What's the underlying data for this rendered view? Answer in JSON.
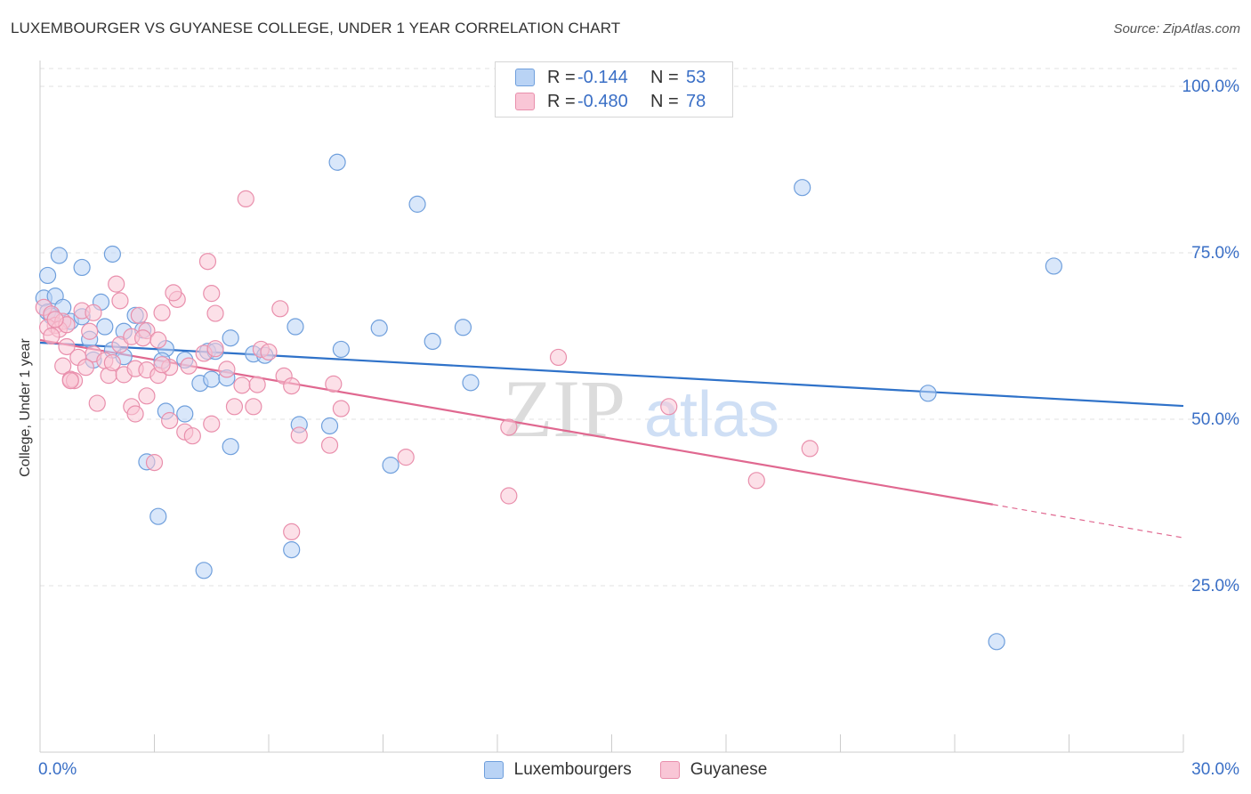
{
  "title": "LUXEMBOURGER VS GUYANESE COLLEGE, UNDER 1 YEAR CORRELATION CHART",
  "source": "Source: ZipAtlas.com",
  "watermark": {
    "zip": "ZIP",
    "atlas": "atlas"
  },
  "legend_top": [
    {
      "r_label": "R =",
      "r_value": "-0.144",
      "n_label": "N =",
      "n_value": "53"
    },
    {
      "r_label": "R =",
      "r_value": "-0.480",
      "n_label": "N =",
      "n_value": "78"
    }
  ],
  "legend_bottom": [
    "Luxembourgers",
    "Guyanese"
  ],
  "colors": {
    "blue_fill": "#b9d3f5",
    "blue_stroke": "#6f9fdc",
    "blue_line": "#2f72c9",
    "pink_fill": "#f9c6d6",
    "pink_stroke": "#e98fac",
    "pink_line": "#e06890",
    "axis_text": "#3a6fc6",
    "grid": "#e2e2e2"
  },
  "chart_data": {
    "type": "scatter",
    "title": "LUXEMBOURGER VS GUYANESE COLLEGE, UNDER 1 YEAR CORRELATION CHART",
    "xlabel": "",
    "ylabel": "College, Under 1 year",
    "xlim": [
      0,
      30
    ],
    "ylim": [
      0,
      105
    ],
    "x_tick_labels": [
      "0.0%",
      "30.0%"
    ],
    "y_ticks": [
      25,
      50,
      75,
      100
    ],
    "y_tick_labels": [
      "25.0%",
      "50.0%",
      "75.0%",
      "100.0%"
    ],
    "series": [
      {
        "name": "Luxembourgers",
        "r": -0.144,
        "n": 53,
        "trend": {
          "x0": 0,
          "y0": 61.5,
          "x1": 30,
          "y1": 52.0
        },
        "points": [
          [
            0.2,
            71.6
          ],
          [
            0.5,
            74.6
          ],
          [
            1.1,
            72.8
          ],
          [
            1.9,
            74.8
          ],
          [
            0.1,
            68.2
          ],
          [
            0.4,
            68.5
          ],
          [
            0.6,
            66.8
          ],
          [
            1.6,
            67.6
          ],
          [
            0.2,
            66.1
          ],
          [
            0.8,
            64.7
          ],
          [
            1.1,
            65.4
          ],
          [
            1.7,
            63.9
          ],
          [
            2.2,
            63.2
          ],
          [
            2.5,
            65.6
          ],
          [
            2.7,
            63.4
          ],
          [
            3.3,
            60.6
          ],
          [
            1.3,
            62.0
          ],
          [
            1.9,
            60.4
          ],
          [
            2.2,
            59.4
          ],
          [
            3.2,
            58.8
          ],
          [
            3.8,
            58.9
          ],
          [
            4.4,
            60.2
          ],
          [
            4.6,
            60.2
          ],
          [
            5.0,
            62.2
          ],
          [
            5.6,
            59.8
          ],
          [
            5.9,
            59.6
          ],
          [
            6.7,
            63.9
          ],
          [
            7.9,
            60.5
          ],
          [
            8.9,
            63.7
          ],
          [
            9.2,
            43.1
          ],
          [
            10.3,
            61.7
          ],
          [
            11.1,
            63.8
          ],
          [
            11.3,
            55.5
          ],
          [
            7.8,
            88.6
          ],
          [
            9.9,
            82.3
          ],
          [
            20.0,
            84.8
          ],
          [
            26.6,
            73.0
          ],
          [
            23.3,
            53.9
          ],
          [
            25.1,
            16.6
          ],
          [
            4.2,
            55.4
          ],
          [
            4.5,
            56.0
          ],
          [
            4.9,
            56.2
          ],
          [
            3.3,
            51.2
          ],
          [
            3.8,
            50.8
          ],
          [
            6.8,
            49.2
          ],
          [
            7.6,
            49.0
          ],
          [
            2.8,
            43.6
          ],
          [
            3.1,
            35.4
          ],
          [
            5.0,
            45.9
          ],
          [
            4.3,
            27.3
          ],
          [
            6.6,
            30.4
          ],
          [
            1.4,
            58.9
          ],
          [
            0.3,
            65.5
          ]
        ]
      },
      {
        "name": "Guyanese",
        "r": -0.48,
        "n": 78,
        "trend": {
          "x0": 0,
          "y0": 61.9,
          "x1": 25,
          "y1": 37.2,
          "dash_x1": 30,
          "dash_y1": 32.2
        },
        "points": [
          [
            0.1,
            66.8
          ],
          [
            0.3,
            65.8
          ],
          [
            0.4,
            64.1
          ],
          [
            0.6,
            64.7
          ],
          [
            0.2,
            63.8
          ],
          [
            0.5,
            63.5
          ],
          [
            0.7,
            64.2
          ],
          [
            1.1,
            66.3
          ],
          [
            1.4,
            66.0
          ],
          [
            2.1,
            67.8
          ],
          [
            2.6,
            65.6
          ],
          [
            2.8,
            63.3
          ],
          [
            3.2,
            66.0
          ],
          [
            3.6,
            68.0
          ],
          [
            4.5,
            68.9
          ],
          [
            4.4,
            73.7
          ],
          [
            5.4,
            83.1
          ],
          [
            6.3,
            66.6
          ],
          [
            2.0,
            70.3
          ],
          [
            3.5,
            69.0
          ],
          [
            4.6,
            65.9
          ],
          [
            1.3,
            63.2
          ],
          [
            2.1,
            61.2
          ],
          [
            2.4,
            62.4
          ],
          [
            3.1,
            61.9
          ],
          [
            1.4,
            59.8
          ],
          [
            1.7,
            58.8
          ],
          [
            0.7,
            60.9
          ],
          [
            1.0,
            59.3
          ],
          [
            0.6,
            58.0
          ],
          [
            0.8,
            56.0
          ],
          [
            0.9,
            55.8
          ],
          [
            1.2,
            57.8
          ],
          [
            1.8,
            56.6
          ],
          [
            2.2,
            56.7
          ],
          [
            2.5,
            57.6
          ],
          [
            2.8,
            57.4
          ],
          [
            3.1,
            56.6
          ],
          [
            3.4,
            57.8
          ],
          [
            3.9,
            58.0
          ],
          [
            4.3,
            59.9
          ],
          [
            4.6,
            60.6
          ],
          [
            4.9,
            57.5
          ],
          [
            5.3,
            55.1
          ],
          [
            5.7,
            55.2
          ],
          [
            5.8,
            60.5
          ],
          [
            6.0,
            60.1
          ],
          [
            6.4,
            56.5
          ],
          [
            6.6,
            55.0
          ],
          [
            7.7,
            55.3
          ],
          [
            2.4,
            51.9
          ],
          [
            2.5,
            50.8
          ],
          [
            2.8,
            53.5
          ],
          [
            3.4,
            49.8
          ],
          [
            3.8,
            48.1
          ],
          [
            4.0,
            47.5
          ],
          [
            4.5,
            49.3
          ],
          [
            5.1,
            51.9
          ],
          [
            5.6,
            51.9
          ],
          [
            6.8,
            47.6
          ],
          [
            7.6,
            46.1
          ],
          [
            7.9,
            51.6
          ],
          [
            9.6,
            44.3
          ],
          [
            12.3,
            38.5
          ],
          [
            12.3,
            48.8
          ],
          [
            13.6,
            59.3
          ],
          [
            16.5,
            51.9
          ],
          [
            18.8,
            40.8
          ],
          [
            20.2,
            45.6
          ],
          [
            6.6,
            33.1
          ],
          [
            3.0,
            43.5
          ],
          [
            0.3,
            62.5
          ],
          [
            0.4,
            65.0
          ],
          [
            0.8,
            55.8
          ],
          [
            1.5,
            52.4
          ],
          [
            2.7,
            62.2
          ],
          [
            3.2,
            58.2
          ],
          [
            1.9,
            58.5
          ]
        ]
      }
    ]
  }
}
